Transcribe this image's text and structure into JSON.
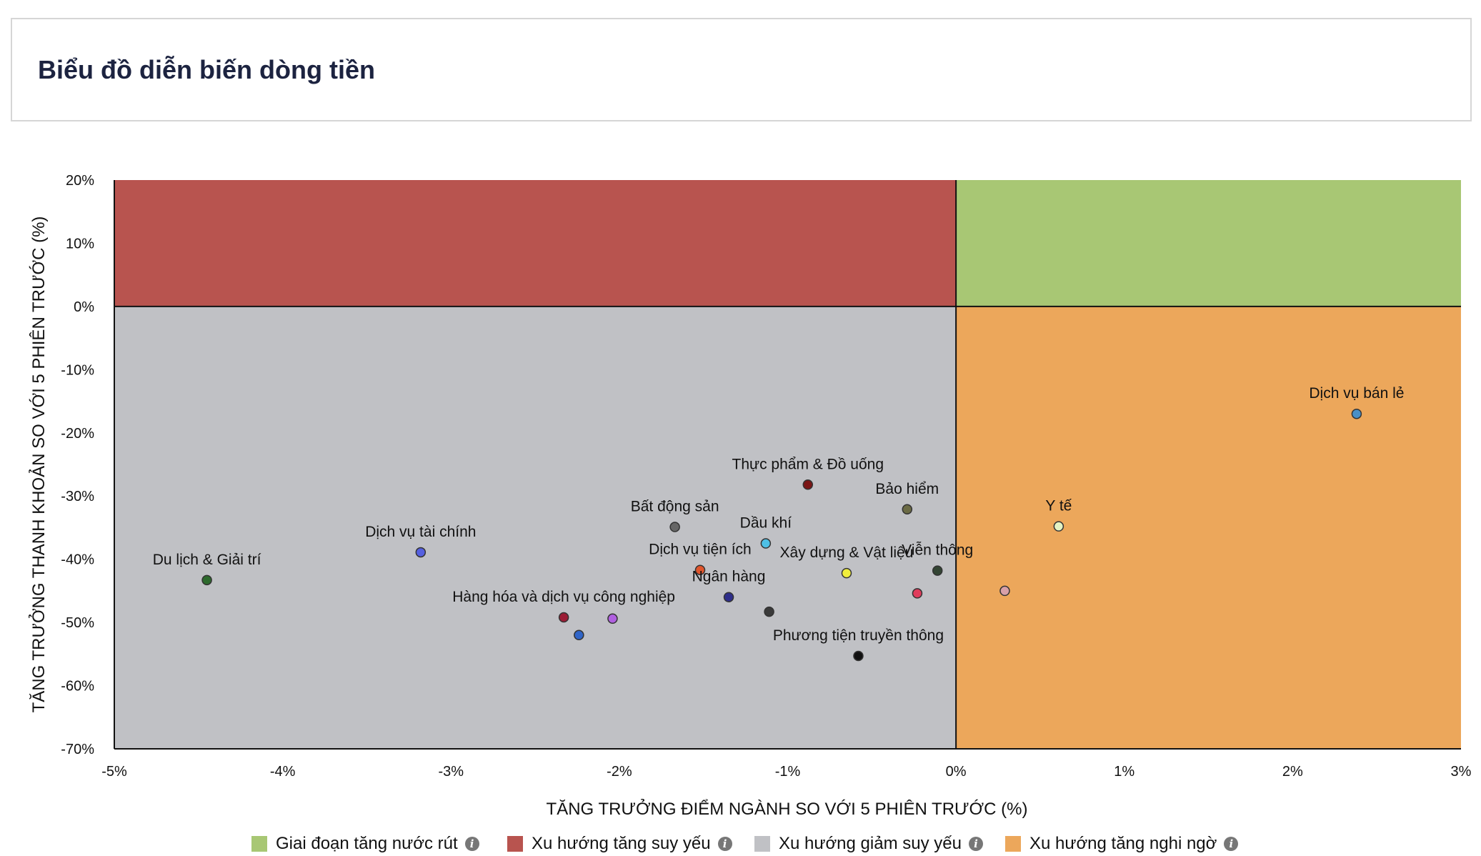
{
  "page": {
    "title": "Biểu đồ diễn biến dòng tiền"
  },
  "colors": {
    "strong_up": "#a8c774",
    "weak_up": "#b8544f",
    "weak_down": "#c0c1c5",
    "doubtful_up": "#eca75b"
  },
  "legend": [
    {
      "label": "Giai đoạn tăng nước rút",
      "color": "#a8c774",
      "icon": "info-icon"
    },
    {
      "label": "Xu hướng tăng suy yếu",
      "color": "#b8544f",
      "icon": "info-icon"
    },
    {
      "label": "Xu hướng giảm suy yếu",
      "color": "#c0c1c5",
      "icon": "info-icon"
    },
    {
      "label": "Xu hướng tăng nghi ngờ",
      "color": "#eca75b",
      "icon": "info-icon"
    }
  ],
  "chart_data": {
    "type": "scatter",
    "xlabel": "TĂNG TRƯỞNG ĐIỂM NGÀNH SO VỚI 5 PHIÊN TRƯỚC (%)",
    "ylabel": "TĂNG TRƯỞNG THANH KHOẢN SO VỚI 5 PHIÊN TRƯỚC (%)",
    "xlim": [
      -5,
      3
    ],
    "ylim": [
      -70,
      20
    ],
    "xticks": [
      -5,
      -4,
      -3,
      -2,
      -1,
      0,
      1,
      2,
      3
    ],
    "yticks": [
      20,
      10,
      0,
      -10,
      -20,
      -30,
      -40,
      -50,
      -60,
      -70
    ],
    "xtick_labels": [
      "-5%",
      "-4%",
      "-3%",
      "-2%",
      "-1%",
      "0%",
      "1%",
      "2%",
      "3%"
    ],
    "ytick_labels": [
      "20%",
      "10%",
      "0%",
      "-10%",
      "-20%",
      "-30%",
      "-40%",
      "-50%",
      "-60%",
      "-70%"
    ],
    "grid": false,
    "legend_position": "bottom",
    "points": [
      {
        "label": "Dịch vụ bán lẻ",
        "x": 2.38,
        "y": -17.0,
        "color": "#4a90c6"
      },
      {
        "label": "Y tế",
        "x": 0.61,
        "y": -34.8,
        "color": "#e4f3c4"
      },
      {
        "label": "",
        "x": 0.29,
        "y": -45.0,
        "color": "#d8a0a8"
      },
      {
        "label": "Thực phẩm & Đồ uống",
        "x": -0.88,
        "y": -28.2,
        "color": "#7a1515"
      },
      {
        "label": "Bảo hiểm",
        "x": -0.29,
        "y": -32.1,
        "color": "#6b6b45"
      },
      {
        "label": "Bất động sản",
        "x": -1.67,
        "y": -34.9,
        "color": "#666666"
      },
      {
        "label": "Dầu khí",
        "x": -1.13,
        "y": -37.5,
        "color": "#4ec0e6"
      },
      {
        "label": "Viễn thông",
        "x": -0.11,
        "y": -41.8,
        "color": "#334433"
      },
      {
        "label": "Xây dựng & Vật liệu",
        "x": -0.65,
        "y": -42.2,
        "color": "#f0ee3c"
      },
      {
        "label": "Dịch vụ tiện ích",
        "x": -1.52,
        "y": -41.7,
        "color": "#e0552c"
      },
      {
        "label": "",
        "x": -0.23,
        "y": -45.4,
        "color": "#e03c5c"
      },
      {
        "label": "Ngân hàng",
        "x": -1.35,
        "y": -46.0,
        "color": "#2e2e8a"
      },
      {
        "label": "",
        "x": -1.11,
        "y": -48.3,
        "color": "#3a3a3a"
      },
      {
        "label": "Phương tiện truyền thông",
        "x": -0.58,
        "y": -55.3,
        "color": "#111111"
      },
      {
        "label": "Dịch vụ tài chính",
        "x": -3.18,
        "y": -38.9,
        "color": "#5560e0"
      },
      {
        "label": "Du lịch & Giải trí",
        "x": -4.45,
        "y": -43.3,
        "color": "#2d6a2d"
      },
      {
        "label": "Hàng hóa và dịch vụ công nghiệp",
        "x": -2.33,
        "y": -49.2,
        "color": "#9b1c35"
      },
      {
        "label": "",
        "x": -2.04,
        "y": -49.4,
        "color": "#b060e0"
      },
      {
        "label": "",
        "x": -2.24,
        "y": -52.0,
        "color": "#3065c8"
      }
    ]
  }
}
